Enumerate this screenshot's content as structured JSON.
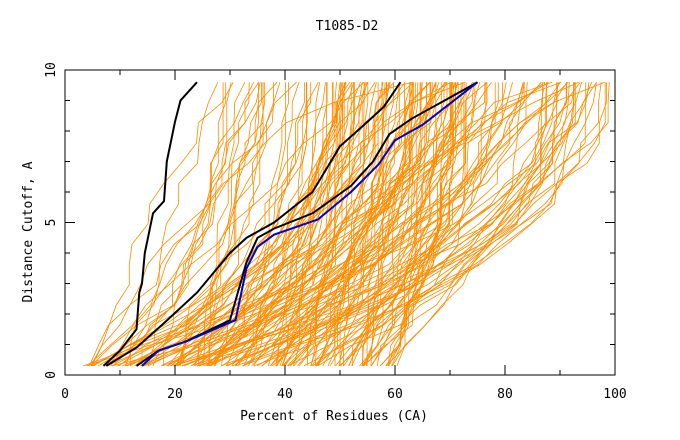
{
  "chart_data": {
    "type": "line",
    "title": "T1085-D2",
    "xlabel": "Percent of Residues (CA)",
    "ylabel": "Distance Cutoff, A",
    "xlim": [
      0,
      100
    ],
    "ylim": [
      0,
      10
    ],
    "x_ticks": [
      "0",
      "20",
      "40",
      "60",
      "80",
      "100"
    ],
    "y_ticks": [
      "0",
      "5",
      "10"
    ],
    "grid": false,
    "legend": "none",
    "colors": {
      "bulk": "#ff8c00",
      "highlight": "#000000",
      "blue": "#0000cd"
    },
    "highlight_series": [
      {
        "color": "#000000",
        "points": [
          [
            7,
            0.3
          ],
          [
            10,
            0.8
          ],
          [
            13,
            1.5
          ],
          [
            13.5,
            2.7
          ],
          [
            14,
            3
          ],
          [
            14.5,
            4
          ],
          [
            16,
            5.3
          ],
          [
            18,
            5.7
          ],
          [
            18.5,
            7
          ],
          [
            20,
            8.3
          ],
          [
            21,
            9
          ],
          [
            24,
            9.6
          ]
        ]
      },
      {
        "color": "#000000",
        "points": [
          [
            7.5,
            0.3
          ],
          [
            13,
            0.9
          ],
          [
            18,
            1.7
          ],
          [
            24,
            2.7
          ],
          [
            30,
            4
          ],
          [
            33,
            4.5
          ],
          [
            38,
            5
          ],
          [
            45,
            6
          ],
          [
            50,
            7.5
          ],
          [
            55,
            8.3
          ],
          [
            58,
            8.8
          ],
          [
            61,
            9.6
          ]
        ]
      },
      {
        "color": "#000000",
        "points": [
          [
            13,
            0.3
          ],
          [
            17,
            0.8
          ],
          [
            22,
            1.1
          ],
          [
            30,
            1.8
          ],
          [
            33,
            3.7
          ],
          [
            35,
            4.5
          ],
          [
            38,
            4.8
          ],
          [
            45,
            5.3
          ],
          [
            52,
            6.2
          ],
          [
            56,
            7
          ],
          [
            59,
            7.9
          ],
          [
            63,
            8.4
          ],
          [
            70,
            9.1
          ],
          [
            75,
            9.6
          ]
        ]
      },
      {
        "color": "#0000cd",
        "points": [
          [
            14,
            0.3
          ],
          [
            17,
            0.8
          ],
          [
            22,
            1.1
          ],
          [
            31,
            1.8
          ],
          [
            33,
            3.5
          ],
          [
            35,
            4.2
          ],
          [
            38,
            4.6
          ],
          [
            46,
            5.1
          ],
          [
            52,
            6
          ],
          [
            57,
            6.9
          ],
          [
            60,
            7.7
          ],
          [
            65,
            8.2
          ],
          [
            70,
            8.9
          ],
          [
            75,
            9.6
          ]
        ]
      }
    ],
    "bulk_series_profile": {
      "description_free": true,
      "count": 180,
      "x_start_range": [
        3,
        60
      ],
      "x_end_range": [
        22,
        100
      ],
      "y_max": 9.6
    }
  }
}
